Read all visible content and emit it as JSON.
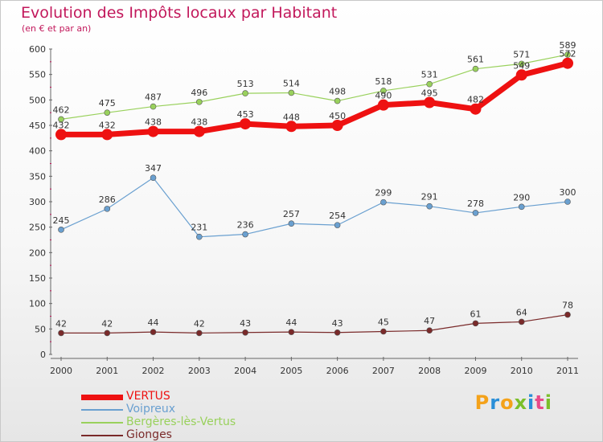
{
  "header": {
    "title": "Evolution des Impôts locaux par Habitant",
    "subtitle": "(en € et par an)"
  },
  "brand": {
    "letters": [
      "P",
      "r",
      "o",
      "x",
      "i",
      "t",
      "i"
    ],
    "colors": [
      "#f4a21a",
      "#2a8fd8",
      "#f4a21a",
      "#7bbf2a",
      "#2a8fd8",
      "#e84a8a",
      "#7bbf2a"
    ]
  },
  "chart_data": {
    "type": "line",
    "x": [
      "2000",
      "2001",
      "2002",
      "2003",
      "2004",
      "2005",
      "2006",
      "2007",
      "2008",
      "2009",
      "2010",
      "2011"
    ],
    "ylim": [
      0,
      600
    ],
    "yticks": [
      0,
      50,
      100,
      150,
      200,
      250,
      300,
      350,
      400,
      450,
      500,
      550,
      600
    ],
    "grid": false,
    "legend_position": "bottom-left",
    "series": [
      {
        "name": "VERTUS",
        "color": "#ee1111",
        "width": 7,
        "marker_r": 7,
        "values": [
          432,
          432,
          438,
          438,
          453,
          448,
          450,
          490,
          495,
          482,
          549,
          572
        ]
      },
      {
        "name": "Voipreux",
        "color": "#6aa0d0",
        "width": 1.2,
        "marker_r": 3.5,
        "values": [
          245,
          286,
          347,
          231,
          236,
          257,
          254,
          299,
          291,
          278,
          290,
          300
        ]
      },
      {
        "name": "Bergères-lès-Vertus",
        "color": "#99d15c",
        "width": 1.2,
        "marker_r": 3.5,
        "values": [
          462,
          475,
          487,
          496,
          513,
          514,
          498,
          518,
          531,
          561,
          571,
          589
        ]
      },
      {
        "name": "Gionges",
        "color": "#7a2a2a",
        "width": 1.2,
        "marker_r": 3.5,
        "values": [
          42,
          42,
          44,
          42,
          43,
          44,
          43,
          45,
          47,
          61,
          64,
          78
        ]
      }
    ]
  }
}
